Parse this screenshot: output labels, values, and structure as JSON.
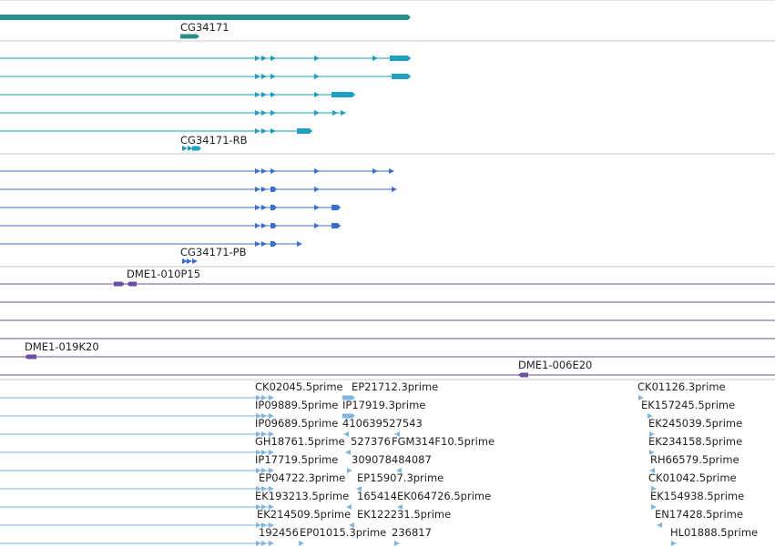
{
  "gene": {
    "label": "CG34171"
  },
  "transcripts": {
    "label": "CG34171-RB",
    "count": 5
  },
  "proteins": {
    "label": "CG34171-PB",
    "count": 5
  },
  "clones": [
    {
      "label": "DME1-010P15",
      "strand": "reverse"
    },
    {
      "label": "DME1-019K20",
      "strand": "reverse"
    },
    {
      "label": "DME1-006E20",
      "strand": "reverse"
    }
  ],
  "ests": [
    [
      "CK02045.5prime",
      "EP21712.3prime",
      "CK01126.3prime"
    ],
    [
      "IP09889.5prime",
      "IP17919.3prime",
      "EK157245.5prime"
    ],
    [
      "IP09689.5prime",
      "410639527543",
      "EK245039.5prime"
    ],
    [
      "GH18761.5prime",
      "527376",
      "FGM314F10.5prime",
      "EK234158.5prime"
    ],
    [
      "IP17719.5prime",
      "309078484087",
      "RH66579.5prime"
    ],
    [
      "EP04722.3prime",
      "EP15907.3prime",
      "CK01042.5prime"
    ],
    [
      "EK193213.5prime",
      "165414",
      "EK064726.5prime",
      "EK154938.5prime"
    ],
    [
      "EK214509.5prime",
      "EK122231.5prime",
      "EN17428.5prime"
    ],
    [
      "192456",
      "EP01015.3prime",
      "236817",
      "HL01888.5prime"
    ]
  ],
  "colors": {
    "gene": "#2e8b8b",
    "transcript": "#1fa0c0",
    "protein": "#3a6fd0",
    "clone": "#6a4fa0",
    "est": "#7fb6e0",
    "separator": "#c8c8c8"
  }
}
